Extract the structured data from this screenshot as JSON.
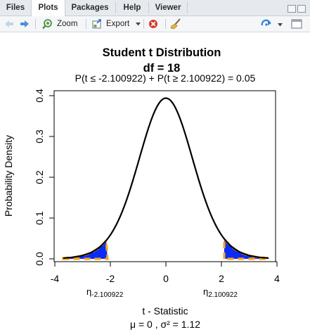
{
  "tabs": [
    "Files",
    "Plots",
    "Packages",
    "Help",
    "Viewer"
  ],
  "active_tab": "Plots",
  "toolbar": {
    "zoom_label": "Zoom",
    "export_label": "Export"
  },
  "colors": {
    "tail_fill": "#0a2cf5",
    "tail_dash": "#f5a623",
    "curve": "#000000"
  },
  "chart_data": {
    "type": "line",
    "title": "Student t Distribution",
    "subtitle": "df  =  18",
    "annotation": "P(t ≤ -2.100922) + P(t ≥ 2.100922) = 0.05",
    "xlabel": "t - Statistic",
    "ylabel": "Probability Density",
    "footer": "μ =  0 , σ² =  1.12",
    "df": 18,
    "critical_value": 2.100922,
    "alpha": 0.05,
    "xlim": [
      -4,
      4
    ],
    "ylim": [
      0,
      0.4
    ],
    "x_ticks": [
      -4,
      -2,
      0,
      2,
      4
    ],
    "x_tick_labels": [
      "-4",
      "-2",
      "0",
      "2",
      "4"
    ],
    "y_ticks": [
      0,
      0.1,
      0.2,
      0.3,
      0.4
    ],
    "y_tick_labels": [
      "0.0",
      "0.1",
      "0.2",
      "0.3",
      "0.4"
    ],
    "critical_labels": [
      {
        "symbol": "η",
        "sub": "-2.100922",
        "x": -2.100922
      },
      {
        "symbol": "η",
        "sub": "2.100922",
        "x": 2.100922
      }
    ],
    "curve_range": [
      -3.7,
      3.7
    ],
    "peak_density": 0.394
  }
}
